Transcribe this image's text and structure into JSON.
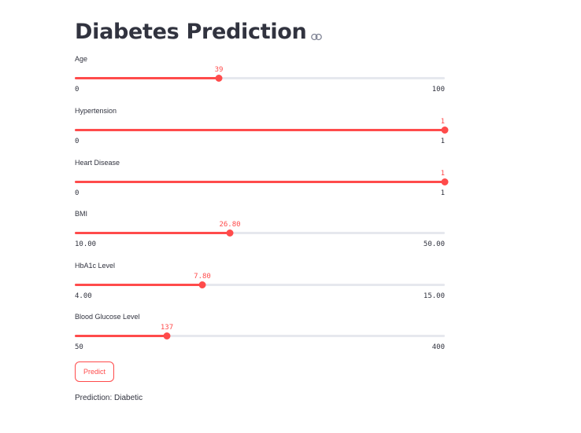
{
  "page": {
    "title": "Diabetes Prediction",
    "accent_color": "#ff4b4b",
    "track_color": "#e6e8ee",
    "text_color": "#31333f"
  },
  "sliders": [
    {
      "label": "Age",
      "value": "39",
      "min": "0",
      "max": "100",
      "fraction": 0.39
    },
    {
      "label": "Hypertension",
      "value": "1",
      "min": "0",
      "max": "1",
      "fraction": 1.0
    },
    {
      "label": "Heart Disease",
      "value": "1",
      "min": "0",
      "max": "1",
      "fraction": 1.0
    },
    {
      "label": "BMI",
      "value": "26.80",
      "min": "10.00",
      "max": "50.00",
      "fraction": 0.42
    },
    {
      "label": "HbA1c Level",
      "value": "7.80",
      "min": "4.00",
      "max": "15.00",
      "fraction": 0.3455
    },
    {
      "label": "Blood Glucose Level",
      "value": "137",
      "min": "50",
      "max": "400",
      "fraction": 0.2486
    }
  ],
  "predict_button": {
    "label": "Predict"
  },
  "result": {
    "text": "Prediction: Diabetic"
  },
  "icons": {
    "title_link": "link-icon"
  }
}
